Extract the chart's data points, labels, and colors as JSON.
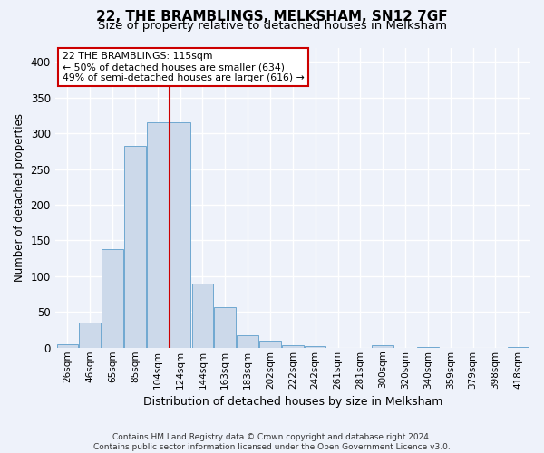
{
  "title": "22, THE BRAMBLINGS, MELKSHAM, SN12 7GF",
  "subtitle": "Size of property relative to detached houses in Melksham",
  "xlabel": "Distribution of detached houses by size in Melksham",
  "ylabel": "Number of detached properties",
  "bar_labels": [
    "26sqm",
    "46sqm",
    "65sqm",
    "85sqm",
    "104sqm",
    "124sqm",
    "144sqm",
    "163sqm",
    "183sqm",
    "202sqm",
    "222sqm",
    "242sqm",
    "261sqm",
    "281sqm",
    "300sqm",
    "320sqm",
    "340sqm",
    "359sqm",
    "379sqm",
    "398sqm",
    "418sqm"
  ],
  "bar_values": [
    5,
    35,
    138,
    283,
    315,
    315,
    90,
    57,
    17,
    10,
    4,
    2,
    0,
    0,
    3,
    0,
    1,
    0,
    0,
    0,
    1
  ],
  "bar_color": "#ccd9ea",
  "bar_edgecolor": "#6fa8d0",
  "vline_color": "#cc0000",
  "vline_pos": 4.55,
  "annotation_text_line1": "22 THE BRAMBLINGS: 115sqm",
  "annotation_text_line2": "← 50% of detached houses are smaller (634)",
  "annotation_text_line3": "49% of semi-detached houses are larger (616) →",
  "annotation_box_color": "#ffffff",
  "annotation_box_edgecolor": "#cc0000",
  "ylim": [
    0,
    420
  ],
  "yticks": [
    0,
    50,
    100,
    150,
    200,
    250,
    300,
    350,
    400
  ],
  "footer_text": "Contains HM Land Registry data © Crown copyright and database right 2024.\nContains public sector information licensed under the Open Government Licence v3.0.",
  "background_color": "#eef2fa",
  "grid_color": "#ffffff"
}
